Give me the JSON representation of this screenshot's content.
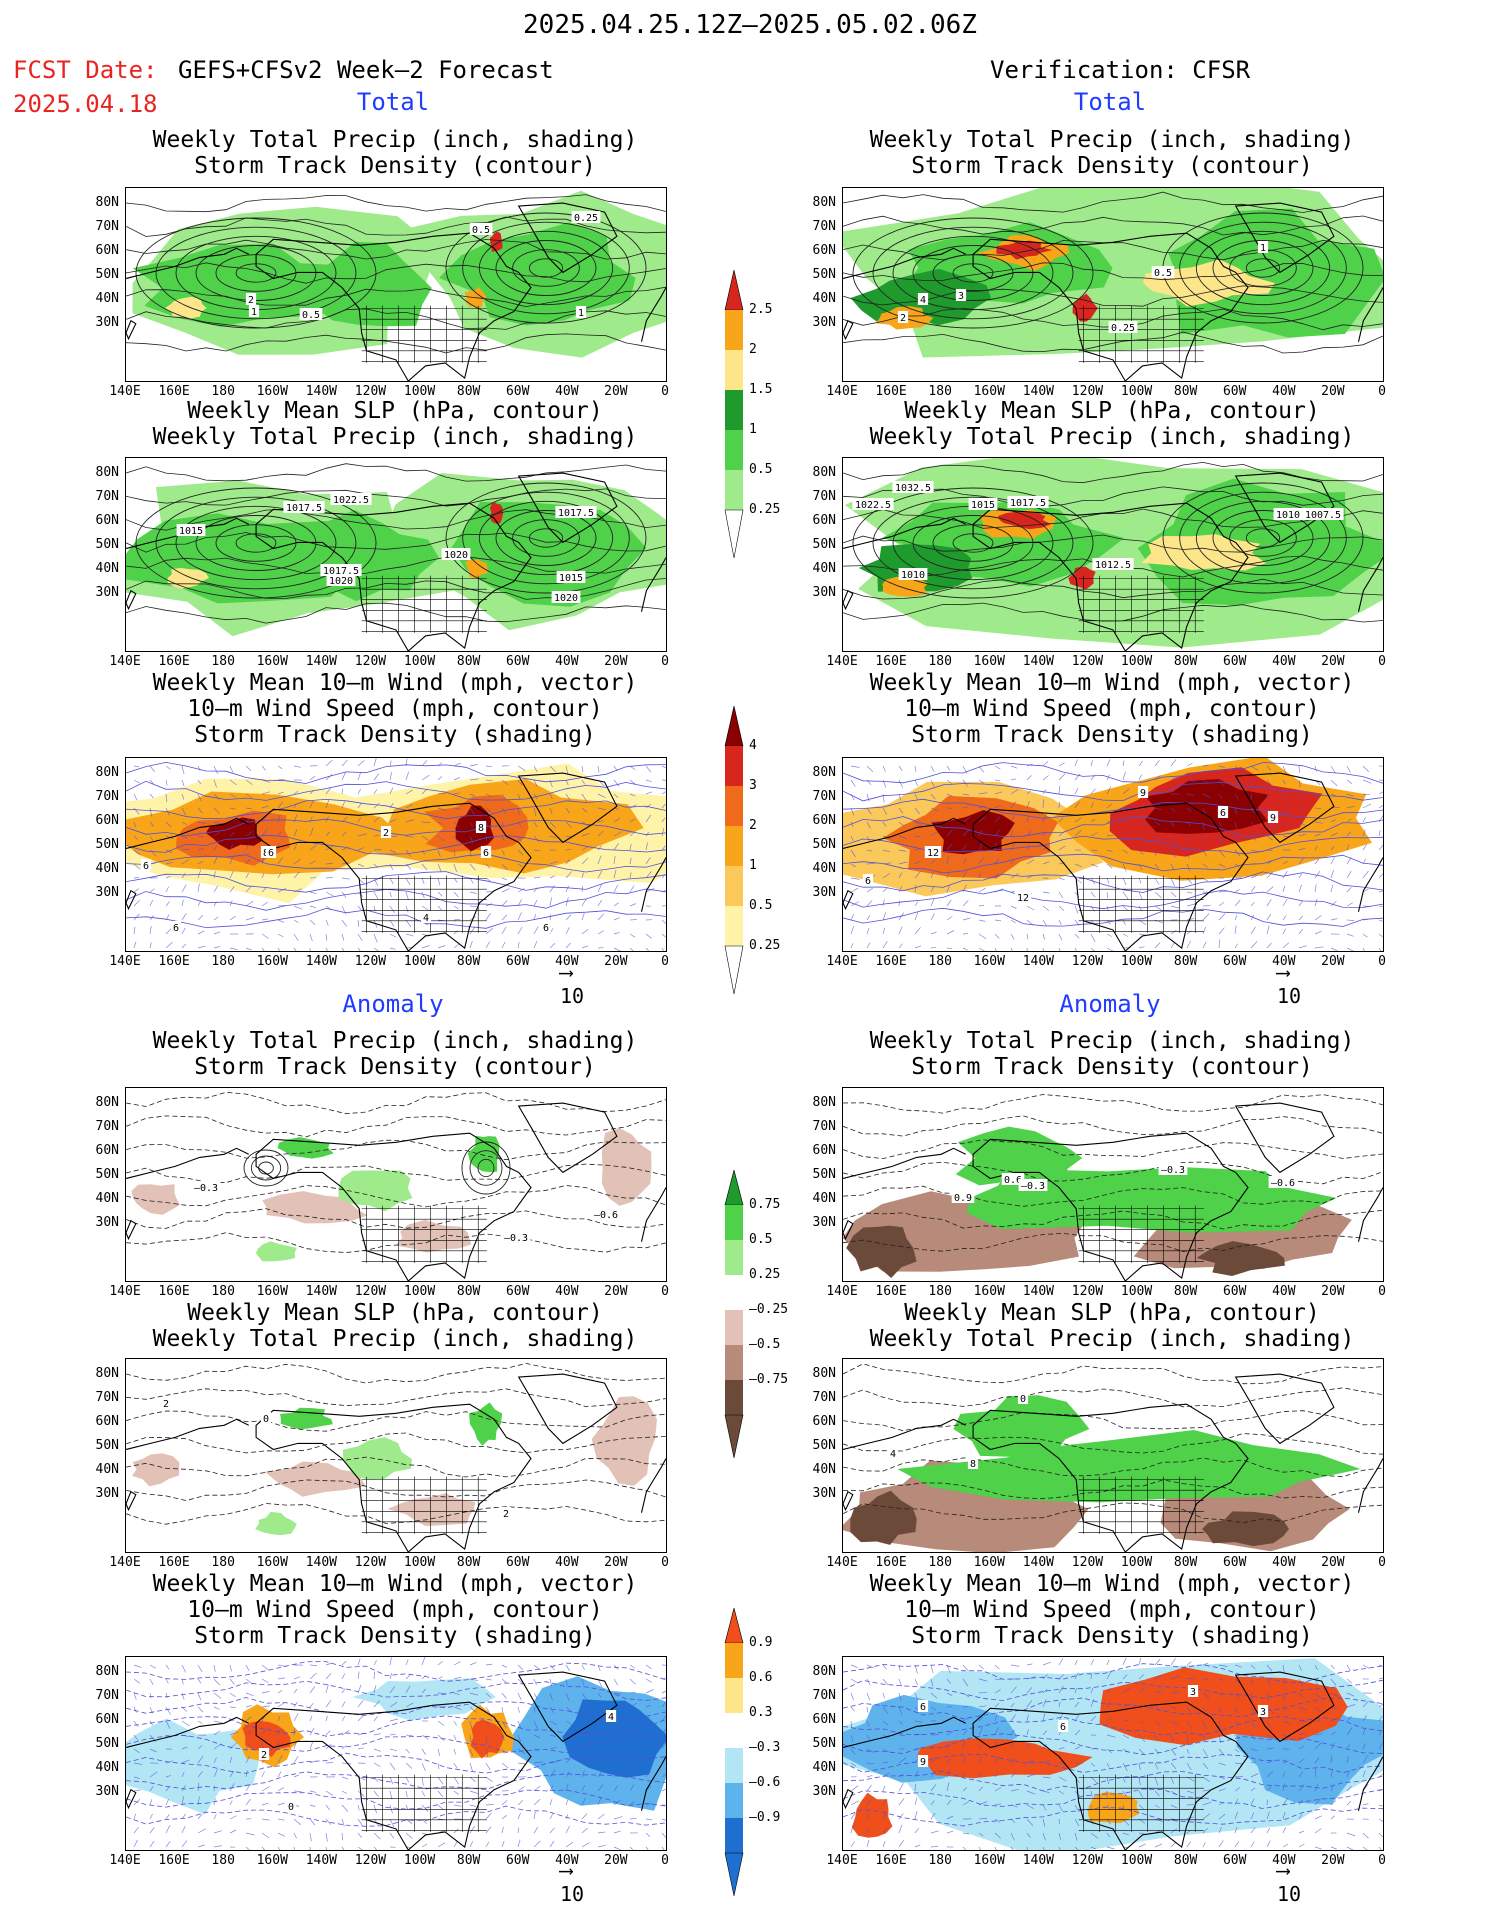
{
  "header": {
    "date_range": "2025.04.25.12Z—2025.05.02.06Z",
    "fcst_label": "FCST Date:",
    "forecast_name": "GEFS+CFSv2 Week–2 Forecast",
    "fcst_date": "2025.04.18",
    "verification": "Verification: CFSR"
  },
  "sections": {
    "total": "Total",
    "anomaly": "Anomaly"
  },
  "panel_titles": {
    "precip_storm": [
      "Weekly Total Precip (inch, shading)",
      "Storm Track Density (contour)"
    ],
    "slp_precip": [
      "Weekly Mean SLP (hPa, contour)",
      "Weekly Total Precip (inch, shading)"
    ],
    "wind_storm": [
      "Weekly Mean 10–m Wind (mph, vector)",
      "10–m Wind Speed (mph, contour)",
      "Storm Track Density (shading)"
    ]
  },
  "axes": {
    "lat_labels": [
      "80N",
      "70N",
      "60N",
      "50N",
      "40N",
      "30N"
    ],
    "lon_labels": [
      "140E",
      "160E",
      "180",
      "160W",
      "140W",
      "120W",
      "100W",
      "80W",
      "60W",
      "40W",
      "20W",
      "0"
    ]
  },
  "vector_ref": "10",
  "colorbars": {
    "total_precip": {
      "labels": [
        "2.5",
        "2",
        "1.5",
        "1",
        "0.5",
        "0.25"
      ],
      "colors": [
        "#d7261e",
        "#f9a51a",
        "#fde68a",
        "#1e9b2c",
        "#4fd14a",
        "#9fea8a"
      ]
    },
    "total_storm": {
      "labels": [
        "4",
        "3",
        "2",
        "1",
        "0.5",
        "0.25"
      ],
      "colors": [
        "#8b0000",
        "#d7261e",
        "#f06a1c",
        "#f9a51a",
        "#fbc95a",
        "#fff3a8"
      ]
    },
    "anom_precip": {
      "labels": [
        "0.75",
        "0.5",
        "0.25",
        "–0.25",
        "–0.5",
        "–0.75"
      ],
      "colors": [
        "#1e9b2c",
        "#4fd14a",
        "#9fea8a",
        "#ffffff",
        "#e2c1b6",
        "#b88a7a",
        "#6b4a3a"
      ]
    },
    "anom_storm": {
      "labels": [
        "0.9",
        "0.6",
        "0.3",
        "–0.3",
        "–0.6",
        "–0.9"
      ],
      "colors": [
        "#f04f1c",
        "#f9a51a",
        "#fde68a",
        "#ffffff",
        "#b3e6f5",
        "#5fb3ec",
        "#1f6fd1"
      ]
    }
  },
  "contour_labels": {
    "left_total_precip": [
      "0.5",
      "2",
      "1",
      "0.5",
      "0.25",
      "1"
    ],
    "left_total_slp": [
      "1017.5",
      "1022.5",
      "1015",
      "1017.5",
      "1020",
      "1017.5",
      "1020",
      "1015",
      "1020"
    ],
    "left_total_wind": [
      "6",
      "8",
      "6",
      "2",
      "8",
      "6",
      "6",
      "4",
      "6"
    ],
    "right_total_precip": [
      "2",
      "4",
      "3",
      "0.5",
      "1",
      "0.25"
    ],
    "right_total_slp": [
      "1032.5",
      "1022.5",
      "1015",
      "1017.5",
      "1010",
      "1007.5",
      "1012.5",
      "1010"
    ],
    "right_total_wind": [
      "12",
      "6",
      "12",
      "9",
      "6",
      "9"
    ],
    "left_anom_precip": [
      "–0.3",
      "–0.3",
      "–0.6"
    ],
    "left_anom_slp": [
      "2",
      "0",
      "2"
    ],
    "left_anom_wind": [
      "2",
      "4",
      "0"
    ],
    "right_anom_precip": [
      "0.9",
      "0.6",
      "–0.3",
      "–0.3",
      "–0.6"
    ],
    "right_anom_slp": [
      "4",
      "0",
      "8"
    ],
    "right_anom_wind": [
      "6",
      "9",
      "6",
      "3",
      "3"
    ]
  },
  "colors": {
    "header_red": "#e8241e",
    "section_blue": "#1f3dff",
    "contour_vector_blue": "#5050d8"
  }
}
